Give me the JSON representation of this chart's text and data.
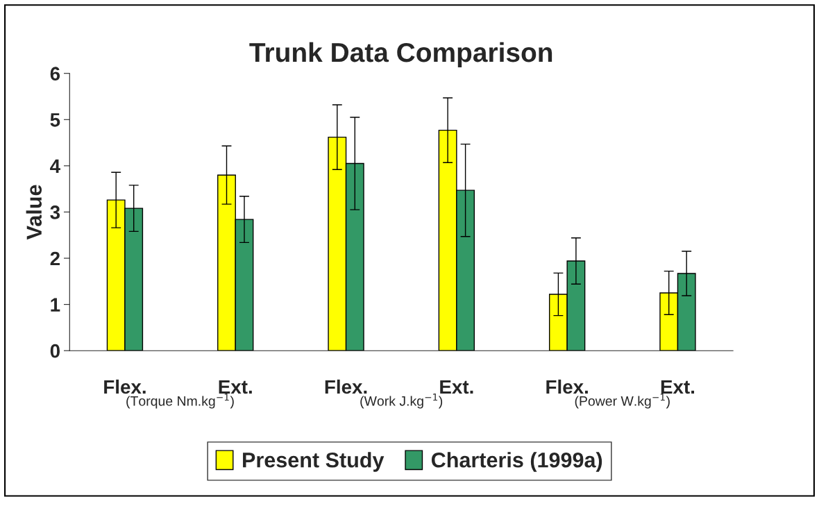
{
  "chart_data": {
    "type": "bar",
    "title": "Trunk Data Comparison",
    "ylabel": "Value",
    "categories": [
      "Flex.",
      "Ext.",
      "Flex.",
      "Ext.",
      "Flex.",
      "Ext."
    ],
    "series": [
      {
        "name": "Present Study",
        "color": "#ffff00",
        "values": [
          3.26,
          3.8,
          4.62,
          4.77,
          1.22,
          1.25
        ],
        "errors": [
          0.6,
          0.63,
          0.7,
          0.7,
          0.46,
          0.47
        ]
      },
      {
        "name": "Charteris (1999a)",
        "color": "#339966",
        "values": [
          3.08,
          2.84,
          4.05,
          3.47,
          1.94,
          1.67
        ],
        "errors": [
          0.5,
          0.5,
          1.0,
          1.0,
          0.5,
          0.48
        ]
      }
    ],
    "annotations": [
      "(Torque Nm.kg$^{−1}$)",
      "(Work J.kg$^{−1}$)",
      "(Power W.kg$^{−1}$)"
    ],
    "ylim": [
      0,
      6
    ],
    "yticks": [
      0,
      1,
      2,
      3,
      4,
      5,
      6
    ],
    "grid": false,
    "legend": "bottom"
  }
}
